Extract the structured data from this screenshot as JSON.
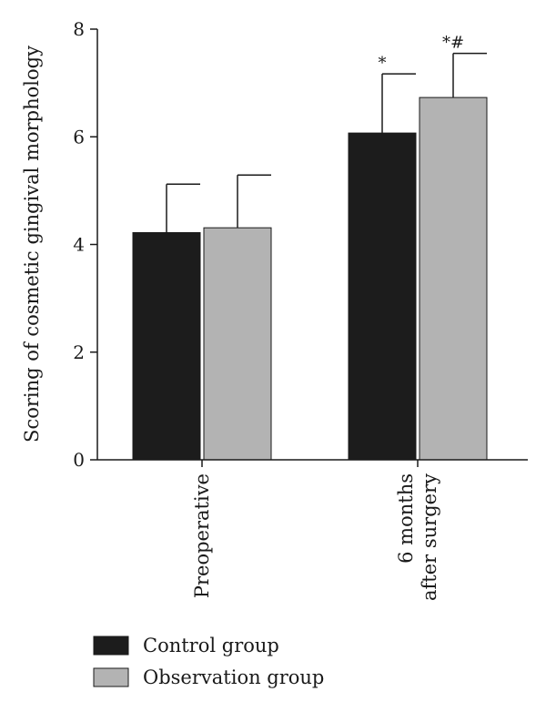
{
  "chart_data": {
    "type": "bar",
    "ylabel": "Scoring of cosmetic gingival morphology",
    "xlabel": "",
    "ylim": [
      0,
      8
    ],
    "yticks": [
      0,
      2,
      4,
      6,
      8
    ],
    "categories": [
      {
        "lines": [
          "Preoperative"
        ]
      },
      {
        "lines": [
          "6 months",
          "after surgery"
        ]
      }
    ],
    "series": [
      {
        "name": "Control group",
        "color": "#1c1c1c",
        "values": [
          4.22,
          6.07
        ],
        "errors": [
          0.9,
          1.1
        ],
        "annotations": [
          "",
          "*"
        ]
      },
      {
        "name": "Observation group",
        "color": "#b3b3b3",
        "values": [
          4.31,
          6.73
        ],
        "errors": [
          0.98,
          0.82
        ],
        "annotations": [
          "",
          "*#"
        ]
      }
    ],
    "legend_position": "bottom-left",
    "grid": false
  }
}
